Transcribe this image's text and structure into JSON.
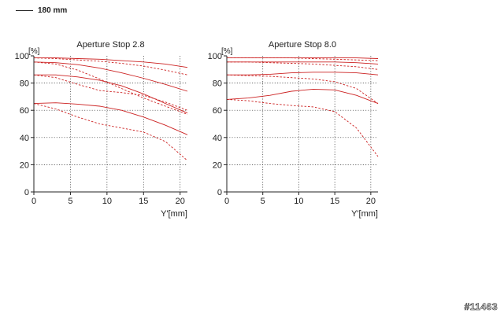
{
  "legend": {
    "label": "180 mm"
  },
  "watermark": "#11463",
  "colors": {
    "curve": "#cc2222",
    "axis": "#222222",
    "grid": "#333333"
  },
  "chart_data": [
    {
      "type": "line",
      "title": "Aperture Stop 2.8",
      "ylabel": "[%]",
      "xlabel": "Y'[mm]",
      "xlim": [
        0,
        21
      ],
      "ylim": [
        0,
        100
      ],
      "xticks": [
        0,
        5,
        10,
        15,
        20
      ],
      "yticks": [
        0,
        20,
        40,
        60,
        80,
        100
      ],
      "grid": true,
      "series": [
        {
          "style": "solid",
          "x": [
            0,
            3,
            6,
            9,
            12,
            15,
            18,
            21
          ],
          "values": [
            98.5,
            98.5,
            98,
            97.5,
            96.5,
            95.5,
            94,
            91.5
          ]
        },
        {
          "style": "dashed",
          "x": [
            0,
            3,
            6,
            9,
            12,
            15,
            18,
            21
          ],
          "values": [
            98.5,
            98,
            97,
            96,
            94.5,
            92.5,
            89.5,
            86
          ]
        },
        {
          "style": "solid",
          "x": [
            0,
            3,
            6,
            9,
            12,
            15,
            18,
            21
          ],
          "values": [
            95.5,
            95,
            93.5,
            91,
            87.5,
            83.5,
            79,
            74
          ]
        },
        {
          "style": "dashed",
          "x": [
            0,
            3,
            6,
            9,
            12,
            15,
            18,
            21
          ],
          "values": [
            95.5,
            94,
            89.5,
            83,
            76,
            69,
            63,
            57
          ]
        },
        {
          "style": "solid",
          "x": [
            0,
            3,
            6,
            9,
            12,
            15,
            18,
            21
          ],
          "values": [
            86,
            86,
            84.5,
            82,
            78,
            72,
            65,
            58
          ]
        },
        {
          "style": "dashed",
          "x": [
            0,
            3,
            6,
            9,
            12,
            15,
            18,
            21
          ],
          "values": [
            86,
            84,
            79,
            74.5,
            73,
            71,
            66,
            60
          ]
        },
        {
          "style": "solid",
          "x": [
            0,
            3,
            6,
            9,
            12,
            15,
            18,
            21
          ],
          "values": [
            65,
            65.5,
            64.5,
            63,
            60,
            55,
            49,
            42
          ]
        },
        {
          "style": "dashed",
          "x": [
            0,
            3,
            6,
            9,
            12,
            15,
            18,
            21
          ],
          "values": [
            65,
            61,
            55,
            50,
            47,
            44,
            37,
            23
          ]
        }
      ]
    },
    {
      "type": "line",
      "title": "Aperture Stop 8.0",
      "ylabel": "[%]",
      "xlabel": "Y'[mm]",
      "xlim": [
        0,
        21
      ],
      "ylim": [
        0,
        100
      ],
      "xticks": [
        0,
        5,
        10,
        15,
        20
      ],
      "yticks": [
        0,
        20,
        40,
        60,
        80,
        100
      ],
      "grid": true,
      "series": [
        {
          "style": "solid",
          "x": [
            0,
            3,
            6,
            9,
            12,
            15,
            18,
            21
          ],
          "values": [
            98.5,
            98.5,
            98.5,
            98.5,
            98.5,
            98.5,
            98.5,
            98
          ]
        },
        {
          "style": "dashed",
          "x": [
            0,
            3,
            6,
            9,
            12,
            15,
            18,
            21
          ],
          "values": [
            98.5,
            98.5,
            98.5,
            98.5,
            98,
            97.5,
            97,
            96.5
          ]
        },
        {
          "style": "solid",
          "x": [
            0,
            3,
            6,
            9,
            12,
            15,
            18,
            21
          ],
          "values": [
            95.5,
            95.5,
            95.5,
            95.5,
            95.5,
            95.5,
            95,
            94
          ]
        },
        {
          "style": "dashed",
          "x": [
            0,
            3,
            6,
            9,
            12,
            15,
            18,
            21
          ],
          "values": [
            95.5,
            95.5,
            95,
            94.5,
            94,
            93,
            92,
            90
          ]
        },
        {
          "style": "solid",
          "x": [
            0,
            3,
            6,
            9,
            12,
            15,
            18,
            21
          ],
          "values": [
            86,
            86,
            86.5,
            87.5,
            88,
            88,
            87.5,
            86
          ]
        },
        {
          "style": "dashed",
          "x": [
            0,
            3,
            6,
            9,
            12,
            15,
            18,
            21
          ],
          "values": [
            86,
            85.5,
            85,
            84,
            83,
            81,
            76,
            65
          ]
        },
        {
          "style": "solid",
          "x": [
            0,
            3,
            6,
            9,
            12,
            15,
            18,
            21
          ],
          "values": [
            68,
            69,
            71,
            74,
            75.5,
            75,
            71,
            65
          ]
        },
        {
          "style": "dashed",
          "x": [
            0,
            3,
            6,
            9,
            12,
            15,
            18,
            21
          ],
          "values": [
            68,
            67,
            65,
            63.5,
            62.5,
            59,
            47,
            26
          ]
        }
      ]
    }
  ]
}
